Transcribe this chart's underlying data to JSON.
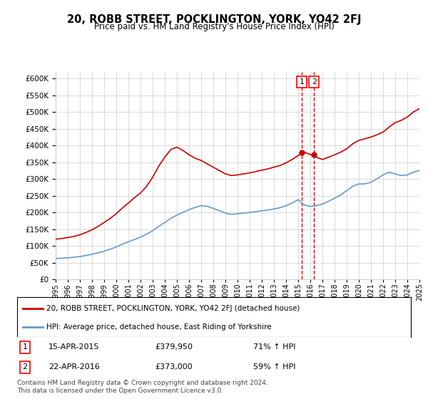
{
  "title": "20, ROBB STREET, POCKLINGTON, YORK, YO42 2FJ",
  "subtitle": "Price paid vs. HM Land Registry's House Price Index (HPI)",
  "ylabel_ticks": [
    "£0",
    "£50K",
    "£100K",
    "£150K",
    "£200K",
    "£250K",
    "£300K",
    "£350K",
    "£400K",
    "£450K",
    "£500K",
    "£550K",
    "£600K"
  ],
  "ylim": [
    0,
    620000
  ],
  "ytick_vals": [
    0,
    50000,
    100000,
    150000,
    200000,
    250000,
    300000,
    350000,
    400000,
    450000,
    500000,
    550000,
    600000
  ],
  "xmin_year": 1995,
  "xmax_year": 2025,
  "xtick_years": [
    1995,
    1996,
    1997,
    1998,
    1999,
    2000,
    2001,
    2002,
    2003,
    2004,
    2005,
    2006,
    2007,
    2008,
    2009,
    2010,
    2011,
    2012,
    2013,
    2014,
    2015,
    2016,
    2017,
    2018,
    2019,
    2020,
    2021,
    2022,
    2023,
    2024,
    2025
  ],
  "red_line_color": "#cc0000",
  "blue_line_color": "#6699cc",
  "marker_color": "#cc0000",
  "dashed_line_color": "#cc0000",
  "grid_color": "#cccccc",
  "background_color": "#ffffff",
  "legend_box_color": "#000000",
  "legend1_label": "20, ROBB STREET, POCKLINGTON, YORK, YO42 2FJ (detached house)",
  "legend2_label": "HPI: Average price, detached house, East Riding of Yorkshire",
  "sale1_year": 2015.29,
  "sale1_price": 379950,
  "sale1_label": "1",
  "sale1_date": "15-APR-2015",
  "sale1_pct": "71% ↑ HPI",
  "sale2_year": 2016.31,
  "sale2_price": 373000,
  "sale2_label": "2",
  "sale2_date": "22-APR-2016",
  "sale2_pct": "59% ↑ HPI",
  "footnote": "Contains HM Land Registry data © Crown copyright and database right 2024.\nThis data is licensed under the Open Government Licence v3.0.",
  "red_x": [
    1995.0,
    1995.5,
    1996.0,
    1996.5,
    1997.0,
    1997.5,
    1998.0,
    1998.5,
    1999.0,
    1999.5,
    2000.0,
    2000.5,
    2001.0,
    2001.5,
    2002.0,
    2002.5,
    2003.0,
    2003.5,
    2004.0,
    2004.5,
    2005.0,
    2005.5,
    2006.0,
    2006.5,
    2007.0,
    2007.5,
    2008.0,
    2008.5,
    2009.0,
    2009.5,
    2010.0,
    2010.5,
    2011.0,
    2011.5,
    2012.0,
    2012.5,
    2013.0,
    2013.5,
    2014.0,
    2014.5,
    2015.0,
    2015.5,
    2016.0,
    2016.5,
    2017.0,
    2017.5,
    2018.0,
    2018.5,
    2019.0,
    2019.5,
    2020.0,
    2020.5,
    2021.0,
    2021.5,
    2022.0,
    2022.5,
    2023.0,
    2023.5,
    2024.0,
    2024.5,
    2025.0
  ],
  "red_y": [
    120000,
    122000,
    125000,
    128000,
    133000,
    140000,
    148000,
    158000,
    170000,
    182000,
    196000,
    213000,
    228000,
    244000,
    258000,
    278000,
    305000,
    338000,
    365000,
    388000,
    395000,
    385000,
    372000,
    362000,
    355000,
    345000,
    335000,
    325000,
    315000,
    310000,
    312000,
    315000,
    318000,
    322000,
    326000,
    330000,
    335000,
    340000,
    348000,
    358000,
    370000,
    379950,
    373000,
    365000,
    358000,
    365000,
    372000,
    380000,
    390000,
    405000,
    415000,
    420000,
    425000,
    432000,
    440000,
    455000,
    468000,
    475000,
    485000,
    500000,
    510000
  ],
  "blue_x": [
    1995.0,
    1995.5,
    1996.0,
    1996.5,
    1997.0,
    1997.5,
    1998.0,
    1998.5,
    1999.0,
    1999.5,
    2000.0,
    2000.5,
    2001.0,
    2001.5,
    2002.0,
    2002.5,
    2003.0,
    2003.5,
    2004.0,
    2004.5,
    2005.0,
    2005.5,
    2006.0,
    2006.5,
    2007.0,
    2007.5,
    2008.0,
    2008.5,
    2009.0,
    2009.5,
    2010.0,
    2010.5,
    2011.0,
    2011.5,
    2012.0,
    2012.5,
    2013.0,
    2013.5,
    2014.0,
    2014.5,
    2015.0,
    2015.5,
    2016.0,
    2016.5,
    2017.0,
    2017.5,
    2018.0,
    2018.5,
    2019.0,
    2019.5,
    2020.0,
    2020.5,
    2021.0,
    2021.5,
    2022.0,
    2022.5,
    2023.0,
    2023.5,
    2024.0,
    2024.5,
    2025.0
  ],
  "blue_y": [
    62000,
    63000,
    64000,
    66000,
    68000,
    71000,
    75000,
    79000,
    84000,
    90000,
    97000,
    105000,
    112000,
    119000,
    126000,
    135000,
    145000,
    158000,
    170000,
    182000,
    192000,
    200000,
    208000,
    215000,
    220000,
    218000,
    212000,
    205000,
    198000,
    194000,
    196000,
    198000,
    200000,
    202000,
    205000,
    207000,
    210000,
    214000,
    220000,
    228000,
    238000,
    222000,
    218000,
    220000,
    225000,
    233000,
    242000,
    252000,
    265000,
    278000,
    285000,
    285000,
    290000,
    300000,
    312000,
    320000,
    315000,
    310000,
    312000,
    320000,
    325000
  ]
}
